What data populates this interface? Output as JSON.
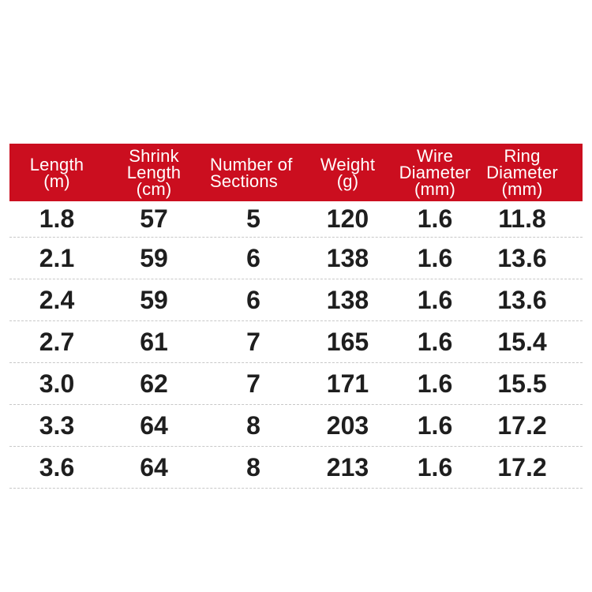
{
  "colors": {
    "page_bg": "#ffffff",
    "header_bg": "#cb0e1f",
    "header_text": "#ffffff",
    "body_text": "#1e1e1e",
    "separator": "#c8c8c8"
  },
  "table": {
    "columns": [
      {
        "lines": [
          "Length",
          "(m)"
        ]
      },
      {
        "lines": [
          "Shrink",
          "Length",
          "(cm)"
        ]
      },
      {
        "lines": [
          "Number of",
          "Sections"
        ]
      },
      {
        "lines": [
          "Weight",
          "(g)"
        ]
      },
      {
        "lines": [
          "Wire",
          "Diameter",
          "(mm)"
        ]
      },
      {
        "lines": [
          "Ring",
          "Diameter",
          "(mm)"
        ]
      }
    ],
    "rows": [
      [
        "1.8",
        "57",
        "5",
        "120",
        "1.6",
        "11.8"
      ],
      [
        "2.1",
        "59",
        "6",
        "138",
        "1.6",
        "13.6"
      ],
      [
        "2.4",
        "59",
        "6",
        "138",
        "1.6",
        "13.6"
      ],
      [
        "2.7",
        "61",
        "7",
        "165",
        "1.6",
        "15.4"
      ],
      [
        "3.0",
        "62",
        "7",
        "171",
        "1.6",
        "15.5"
      ],
      [
        "3.3",
        "64",
        "8",
        "203",
        "1.6",
        "17.2"
      ],
      [
        "3.6",
        "64",
        "8",
        "213",
        "1.6",
        "17.2"
      ]
    ]
  },
  "chart_data": {
    "type": "table",
    "columns": [
      "Length (m)",
      "Shrink Length (cm)",
      "Number of Sections",
      "Weight (g)",
      "Wire Diameter (mm)",
      "Ring Diameter (mm)"
    ],
    "rows": [
      [
        1.8,
        57,
        5,
        120,
        1.6,
        11.8
      ],
      [
        2.1,
        59,
        6,
        138,
        1.6,
        13.6
      ],
      [
        2.4,
        59,
        6,
        138,
        1.6,
        13.6
      ],
      [
        2.7,
        61,
        7,
        165,
        1.6,
        15.4
      ],
      [
        3.0,
        62,
        7,
        171,
        1.6,
        15.5
      ],
      [
        3.3,
        64,
        8,
        203,
        1.6,
        17.2
      ],
      [
        3.6,
        64,
        8,
        213,
        1.6,
        17.2
      ]
    ]
  }
}
